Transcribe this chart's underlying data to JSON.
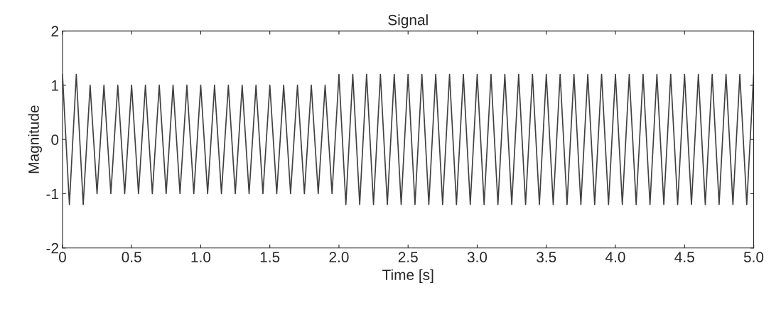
{
  "chart_data": {
    "type": "line",
    "title": "Signal",
    "xlabel": "Time [s]",
    "ylabel": "Magnitude",
    "x": [
      0,
      0.05,
      0.1,
      0.15,
      0.2,
      0.25,
      0.3,
      0.35,
      0.4,
      0.45,
      0.5,
      0.55,
      0.6,
      0.65,
      0.7,
      0.75,
      0.8,
      0.85,
      0.9,
      0.95,
      1.0,
      1.05,
      1.1,
      1.15,
      1.2,
      1.25,
      1.3,
      1.35,
      1.4,
      1.45,
      1.5,
      1.55,
      1.6,
      1.65,
      1.7,
      1.75,
      1.8,
      1.85,
      1.9,
      1.95,
      2.0,
      2.05,
      2.1,
      2.15,
      2.2,
      2.25,
      2.3,
      2.35,
      2.4,
      2.45,
      2.5,
      2.55,
      2.6,
      2.65,
      2.7,
      2.75,
      2.8,
      2.85,
      2.9,
      2.95,
      3.0,
      3.05,
      3.1,
      3.15,
      3.2,
      3.25,
      3.3,
      3.35,
      3.4,
      3.45,
      3.5,
      3.55,
      3.6,
      3.65,
      3.7,
      3.75,
      3.8,
      3.85,
      3.9,
      3.95,
      4.0,
      4.05,
      4.1,
      4.15,
      4.2,
      4.25,
      4.3,
      4.35,
      4.4,
      4.45,
      4.5,
      4.55,
      4.6,
      4.65,
      4.7,
      4.75,
      4.8,
      4.85,
      4.9,
      4.95,
      5.0
    ],
    "series": [
      {
        "color": "#404040",
        "values": [
          1.2,
          -1.2,
          1.2,
          -1.2,
          1.0,
          -1.0,
          1.0,
          -1.0,
          1.0,
          -1.0,
          1.0,
          -1.0,
          1.0,
          -1.0,
          1.0,
          -1.0,
          1.0,
          -1.0,
          1.0,
          -1.0,
          1.0,
          -1.0,
          1.0,
          -1.0,
          1.0,
          -1.0,
          1.0,
          -1.0,
          1.0,
          -1.0,
          1.0,
          -1.0,
          1.0,
          -1.0,
          1.0,
          -1.0,
          1.0,
          -1.0,
          1.0,
          -1.0,
          1.2,
          -1.2,
          1.2,
          -1.2,
          1.2,
          -1.2,
          1.2,
          -1.2,
          1.2,
          -1.2,
          1.2,
          -1.2,
          1.2,
          -1.2,
          1.2,
          -1.2,
          1.2,
          -1.2,
          1.2,
          -1.2,
          1.2,
          -1.2,
          1.2,
          -1.2,
          1.2,
          -1.2,
          1.2,
          -1.2,
          1.2,
          -1.2,
          1.2,
          -1.2,
          1.2,
          -1.2,
          1.2,
          -1.2,
          1.2,
          -1.2,
          1.2,
          -1.2,
          1.2,
          -1.2,
          1.2,
          -1.2,
          1.2,
          -1.2,
          1.2,
          -1.2,
          1.2,
          -1.2,
          1.2,
          -1.2,
          1.2,
          -1.2,
          1.2,
          -1.2,
          1.2,
          -1.2,
          1.2,
          -1.2,
          1.2
        ]
      }
    ],
    "xlim": [
      0,
      5
    ],
    "xticks": [
      0,
      0.5,
      {
        "value": 1,
        "label": "1.0"
      },
      1.5,
      {
        "value": 2,
        "label": "2.0"
      },
      2.5,
      {
        "value": 3,
        "label": "3.0"
      },
      3.5,
      {
        "value": 4,
        "label": "4.0"
      },
      4.5,
      {
        "value": 5,
        "label": "5.0"
      }
    ],
    "ylim": [
      -2,
      2
    ],
    "yticks": [
      -2,
      -1,
      0,
      1,
      2
    ],
    "grid": false
  }
}
